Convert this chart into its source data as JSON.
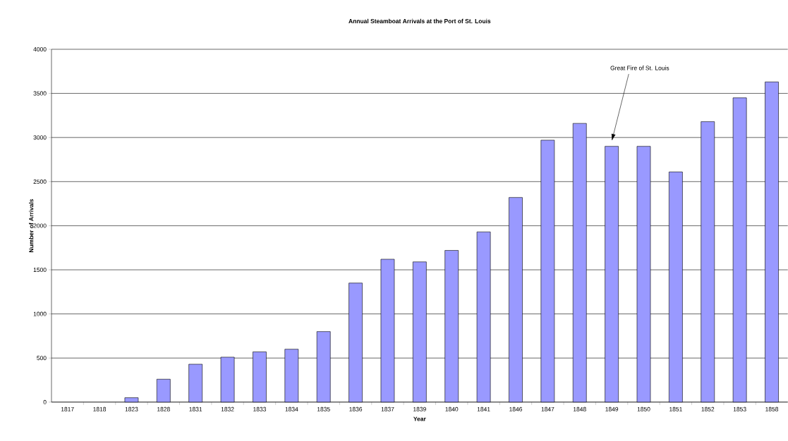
{
  "chart_data": {
    "type": "bar",
    "title": "Annual Steamboat Arrivals at the Port of St. Louis",
    "xlabel": "Year",
    "ylabel": "Number of Arrivals",
    "categories": [
      "1817",
      "1818",
      "1823",
      "1828",
      "1831",
      "1832",
      "1833",
      "1834",
      "1835",
      "1836",
      "1837",
      "1839",
      "1840",
      "1841",
      "1846",
      "1847",
      "1848",
      "1849",
      "1850",
      "1851",
      "1852",
      "1853",
      "1858"
    ],
    "values": [
      0,
      0,
      50,
      260,
      430,
      510,
      570,
      600,
      800,
      1350,
      1620,
      1590,
      1720,
      1930,
      2320,
      2970,
      3160,
      2900,
      2900,
      2610,
      3180,
      3450,
      3630
    ],
    "color": "#9999ff",
    "ylim": [
      0,
      4000
    ],
    "yticks": [
      0,
      500,
      1000,
      1500,
      2000,
      2500,
      3000,
      3500,
      4000
    ],
    "grid": "y",
    "annotations": [
      "Great Fire of St. Louis"
    ]
  }
}
